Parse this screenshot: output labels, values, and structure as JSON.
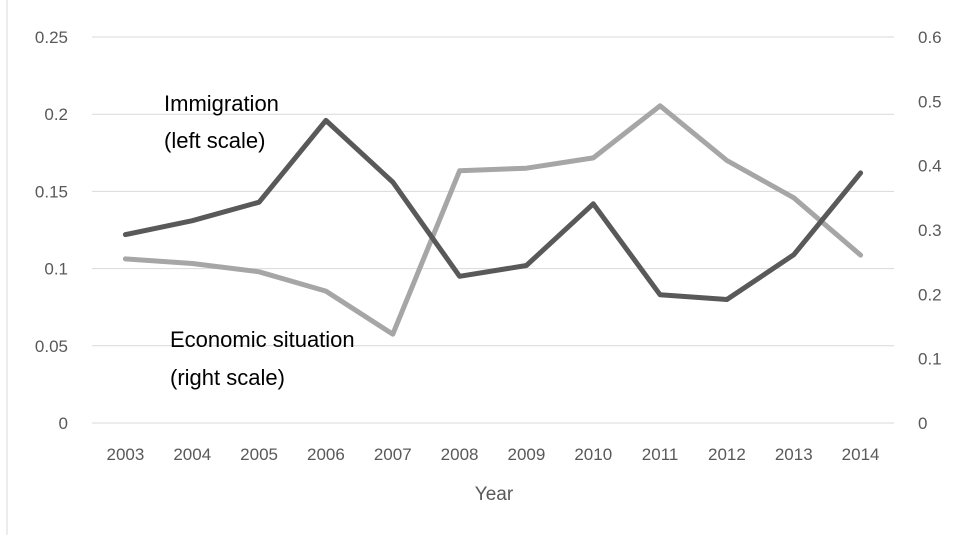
{
  "chart_data": {
    "type": "line",
    "title": "",
    "xlabel": "Year",
    "categories": [
      "2003",
      "2004",
      "2005",
      "2006",
      "2007",
      "2008",
      "2009",
      "2010",
      "2011",
      "2012",
      "2013",
      "2014"
    ],
    "y_left": {
      "ylim": [
        0,
        0.25
      ],
      "ticks": [
        0,
        0.05,
        0.1,
        0.15,
        0.2,
        0.25
      ],
      "tick_labels": [
        "0",
        "0.05",
        "0.1",
        "0.15",
        "0.2",
        "0.25"
      ]
    },
    "y_right": {
      "ylim": [
        0,
        0.6
      ],
      "ticks": [
        0,
        0.1,
        0.2,
        0.3,
        0.4,
        0.5,
        0.6
      ],
      "tick_labels": [
        "0",
        "0.1",
        "0.2",
        "0.3",
        "0.4",
        "0.5",
        "0.6"
      ]
    },
    "series": [
      {
        "key": "immigration",
        "axis": "left",
        "color": "#595959",
        "values": [
          0.122,
          0.131,
          0.143,
          0.196,
          0.156,
          0.095,
          0.102,
          0.142,
          0.083,
          0.08,
          0.109,
          0.162
        ]
      },
      {
        "key": "economic",
        "axis": "right",
        "color": "#a6a6a6",
        "values": [
          0.255,
          0.248,
          0.235,
          0.205,
          0.138,
          0.392,
          0.396,
          0.412,
          0.493,
          0.408,
          0.35,
          0.261
        ]
      }
    ],
    "grid": true,
    "legend": "none",
    "annotations": {
      "immigration_line1": "Immigration",
      "immigration_line2": "(left scale)",
      "economic_line1": "Economic situation",
      "economic_line2": "(right scale)"
    }
  }
}
